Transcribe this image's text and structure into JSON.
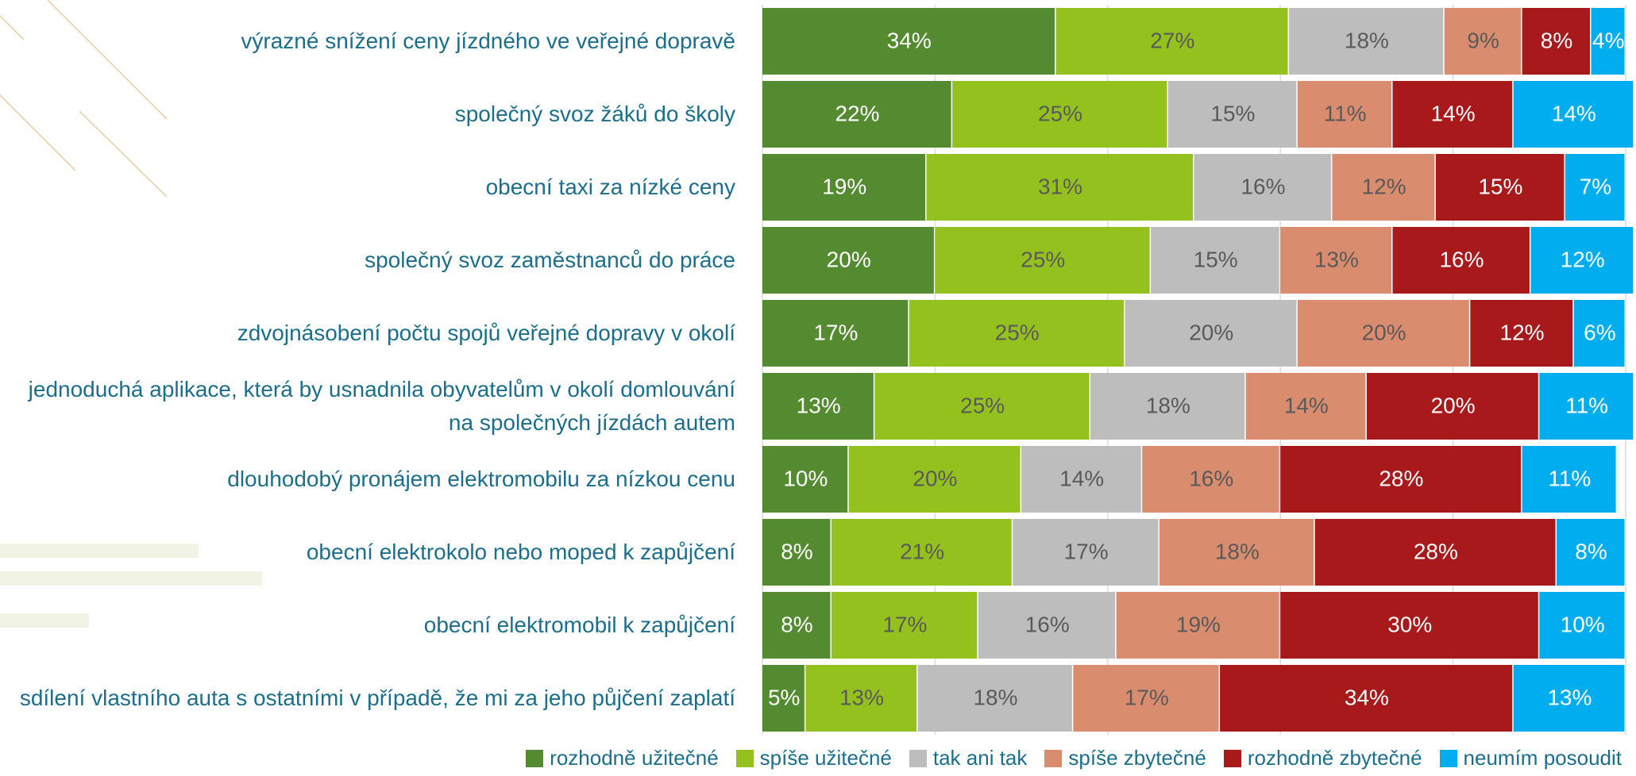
{
  "chart_data": {
    "type": "stacked-bar-horizontal",
    "categories": [
      "výrazné snížení ceny jízdného ve veřejné dopravě",
      "společný svoz žáků do školy",
      "obecní taxi za nízké ceny",
      "společný svoz zaměstnanců do práce",
      "zdvojnásobení počtu spojů veřejné dopravy v okolí",
      "jednoduchá aplikace, která by usnadnila obyvatelům v okolí domlouvání na společných jízdách autem",
      "dlouhodobý pronájem elektromobilu za nízkou cenu",
      "obecní elektrokolo nebo moped k zapůjčení",
      "obecní elektromobil k zapůjčení",
      "sdílení vlastního auta s ostatními v případě, že mi za jeho půjčení zaplatí"
    ],
    "series": [
      {
        "name": "rozhodně užitečné",
        "color": "#548b31",
        "values": [
          34,
          22,
          19,
          20,
          17,
          13,
          10,
          8,
          8,
          5
        ],
        "value_labels": [
          "34%",
          "22%",
          "19%",
          "20%",
          "17%",
          "13%",
          "10%",
          "8%",
          "8%",
          "5%"
        ]
      },
      {
        "name": "spíše užitečné",
        "color": "#95c11f",
        "values": [
          27,
          25,
          31,
          25,
          25,
          25,
          20,
          21,
          17,
          13
        ],
        "value_labels": [
          "27%",
          "25%",
          "31%",
          "25%",
          "25%",
          "25%",
          "20%",
          "21%",
          "17%",
          "13%"
        ]
      },
      {
        "name": "tak ani tak",
        "color": "#bdbdbd",
        "values": [
          18,
          15,
          16,
          15,
          20,
          18,
          14,
          17,
          16,
          18
        ],
        "value_labels": [
          "18%",
          "15%",
          "16%",
          "15%",
          "20%",
          "18%",
          "14%",
          "17%",
          "16%",
          "18%"
        ]
      },
      {
        "name": "spíše zbytečné",
        "color": "#d98c6e",
        "values": [
          9,
          11,
          12,
          13,
          20,
          14,
          16,
          18,
          19,
          17
        ],
        "value_labels": [
          "9%",
          "11%",
          "12%",
          "13%",
          "20%",
          "14%",
          "16%",
          "18%",
          "19%",
          "17%"
        ]
      },
      {
        "name": "rozhodně zbytečné",
        "color": "#a8191b",
        "values": [
          8,
          14,
          15,
          16,
          12,
          20,
          28,
          28,
          30,
          34
        ],
        "value_labels": [
          "8%",
          "14%",
          "15%",
          "16%",
          "12%",
          "20%",
          "28%",
          "28%",
          "30%",
          "34%"
        ]
      },
      {
        "name": "neumím posoudit",
        "color": "#00aeef",
        "values": [
          4,
          14,
          7,
          12,
          6,
          11,
          11,
          8,
          10,
          13
        ],
        "value_labels": [
          "4%",
          "14%",
          "7%",
          "12%",
          "6%",
          "11%",
          "11%",
          "8%",
          "10%",
          "13%"
        ]
      }
    ],
    "xlim": [
      0,
      100
    ],
    "xticks": [
      0,
      20,
      40,
      60,
      80,
      100
    ],
    "grid": true,
    "legend": "bottom"
  }
}
